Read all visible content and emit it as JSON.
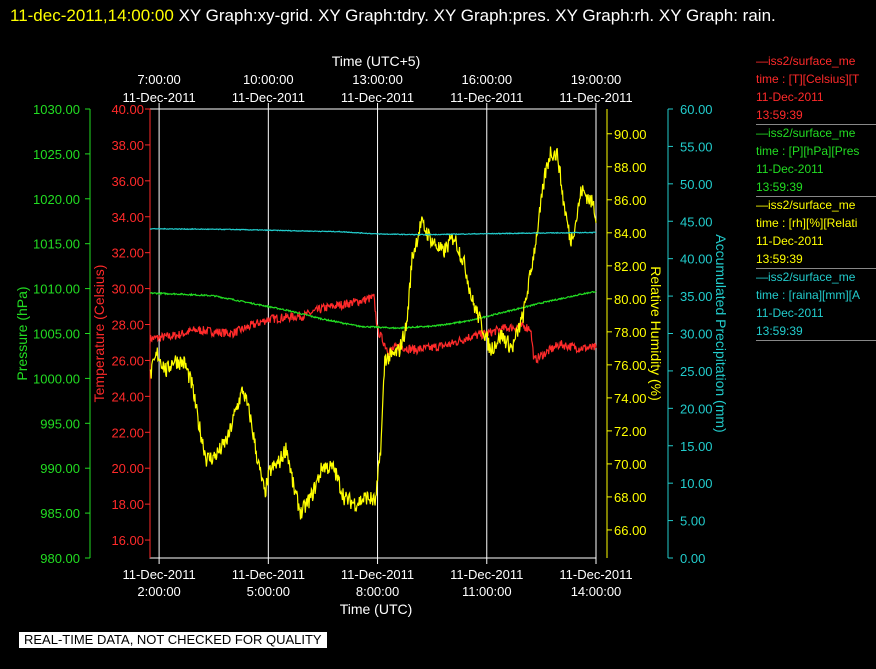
{
  "title": {
    "timestamp": "11-dec-2011,14:00:00",
    "rest": " XY Graph:xy-grid.  XY Graph:tdry.  XY Graph:pres.  XY Graph:rh.  XY Graph: rain."
  },
  "stamp": "REAL-TIME DATA, NOT CHECKED FOR QUALITY",
  "legend": [
    {
      "name": "—iss2/surface_me",
      "units": "time : [T][Celsius][T",
      "date": "11-Dec-2011",
      "time": "13:59:39",
      "color": "#ff2a2a"
    },
    {
      "name": "—iss2/surface_me",
      "units": "time : [P][hPa][Pres",
      "date": "11-Dec-2011",
      "time": "13:59:39",
      "color": "#22dd22"
    },
    {
      "name": "—iss2/surface_me",
      "units": "time : [rh][%][Relati",
      "date": "11-Dec-2011",
      "time": "13:59:39",
      "color": "#ffff00"
    },
    {
      "name": "—iss2/surface_me",
      "units": "time : [raina][mm][A",
      "date": "11-Dec-2011",
      "time": "13:59:39",
      "color": "#22cccc"
    }
  ],
  "chart_data": {
    "type": "line",
    "xlabel": "Time (UTC)",
    "x2label": "Time (UTC+5)",
    "xlim": [
      1.75,
      14.0
    ],
    "xticks": [
      {
        "t": 2,
        "date": "11-Dec-2011",
        "time": "2:00:00"
      },
      {
        "t": 5,
        "date": "11-Dec-2011",
        "time": "5:00:00"
      },
      {
        "t": 8,
        "date": "11-Dec-2011",
        "time": "8:00:00"
      },
      {
        "t": 11,
        "date": "11-Dec-2011",
        "time": "11:00:00"
      },
      {
        "t": 14,
        "date": "11-Dec-2011",
        "time": "14:00:00"
      }
    ],
    "x2ticks": [
      {
        "t": 2,
        "time": "7:00:00",
        "date": "11-Dec-2011"
      },
      {
        "t": 5,
        "time": "10:00:00",
        "date": "11-Dec-2011"
      },
      {
        "t": 8,
        "time": "13:00:00",
        "date": "11-Dec-2011"
      },
      {
        "t": 11,
        "time": "16:00:00",
        "date": "11-Dec-2011"
      },
      {
        "t": 14,
        "time": "19:00:00",
        "date": "11-Dec-2011"
      }
    ],
    "grid": true,
    "axes": {
      "pressure": {
        "label": "Pressure (hPa)",
        "ylim": [
          980,
          1030
        ],
        "ticks": [
          "980.00",
          "985.00",
          "990.00",
          "995.00",
          "1000.00",
          "1005.00",
          "1010.00",
          "1015.00",
          "1020.00",
          "1025.00",
          "1030.00"
        ],
        "color": "#22dd22",
        "side": "left"
      },
      "temperature": {
        "label": "Temperature (Celsius)",
        "ylim": [
          15,
          40
        ],
        "ticks": [
          "16.00",
          "18.00",
          "20.00",
          "22.00",
          "24.00",
          "26.00",
          "28.00",
          "30.00",
          "32.00",
          "34.00",
          "36.00",
          "38.00",
          "40.00"
        ],
        "color": "#ff2a2a",
        "side": "left"
      },
      "rh": {
        "label": "Relative Humidity (%)",
        "ylim": [
          64.3,
          91.5
        ],
        "ticks": [
          "66.00",
          "68.00",
          "70.00",
          "72.00",
          "74.00",
          "76.00",
          "78.00",
          "80.00",
          "82.00",
          "84.00",
          "86.00",
          "88.00",
          "90.00"
        ],
        "color": "#ffff00",
        "side": "right"
      },
      "rain": {
        "label": "Accumulated Precipitation (mm)",
        "ylim": [
          0,
          60
        ],
        "ticks": [
          "0.00",
          "5.00",
          "10.00",
          "15.00",
          "20.00",
          "25.00",
          "30.00",
          "35.00",
          "40.00",
          "45.00",
          "50.00",
          "55.00",
          "60.00"
        ],
        "color": "#22cccc",
        "side": "right"
      }
    },
    "series": [
      {
        "axis": "temperature",
        "color": "#ff2a2a",
        "noise": 0.25,
        "points": [
          [
            1.75,
            27.2
          ],
          [
            2.5,
            27.4
          ],
          [
            3,
            27.7
          ],
          [
            4,
            27.5
          ],
          [
            5,
            28.3
          ],
          [
            6,
            28.5
          ],
          [
            6.5,
            28.9
          ],
          [
            7.5,
            29.3
          ],
          [
            7.9,
            29.5
          ],
          [
            8.0,
            27.7
          ],
          [
            8.3,
            26.5
          ],
          [
            8.6,
            26.8
          ],
          [
            9,
            26.6
          ],
          [
            9.5,
            26.7
          ],
          [
            10,
            26.9
          ],
          [
            10.5,
            27.3
          ],
          [
            11,
            27.5
          ],
          [
            11.5,
            27.8
          ],
          [
            12,
            27.9
          ],
          [
            12.2,
            27.8
          ],
          [
            12.3,
            26.0
          ],
          [
            12.6,
            26.4
          ],
          [
            13,
            26.9
          ],
          [
            13.5,
            26.7
          ],
          [
            14,
            26.7
          ]
        ]
      },
      {
        "axis": "pressure",
        "color": "#22dd22",
        "noise": 0.08,
        "points": [
          [
            1.75,
            1009.5
          ],
          [
            2.5,
            1009.4
          ],
          [
            3.5,
            1009.2
          ],
          [
            4.5,
            1008.4
          ],
          [
            5.5,
            1007.6
          ],
          [
            6.5,
            1006.6
          ],
          [
            7.5,
            1005.8
          ],
          [
            8.5,
            1005.6
          ],
          [
            9.5,
            1005.8
          ],
          [
            10.5,
            1006.4
          ],
          [
            11.5,
            1007.4
          ],
          [
            12.5,
            1008.4
          ],
          [
            13.5,
            1009.3
          ],
          [
            14,
            1009.7
          ]
        ]
      },
      {
        "axis": "rh",
        "color": "#ffff00",
        "noise": 0.5,
        "points": [
          [
            1.75,
            75.3
          ],
          [
            1.95,
            76.7
          ],
          [
            2.2,
            75.6
          ],
          [
            2.4,
            76.3
          ],
          [
            2.7,
            76.1
          ],
          [
            2.9,
            74.8
          ],
          [
            3.1,
            72.3
          ],
          [
            3.3,
            70.3
          ],
          [
            3.5,
            70.4
          ],
          [
            3.7,
            70.9
          ],
          [
            3.9,
            71.6
          ],
          [
            4.1,
            73.2
          ],
          [
            4.3,
            74.5
          ],
          [
            4.5,
            72.9
          ],
          [
            4.7,
            70.3
          ],
          [
            4.9,
            68.2
          ],
          [
            5.05,
            69.6
          ],
          [
            5.3,
            70.1
          ],
          [
            5.5,
            71.0
          ],
          [
            5.7,
            68.5
          ],
          [
            5.9,
            67.0
          ],
          [
            6.2,
            68.1
          ],
          [
            6.5,
            69.9
          ],
          [
            6.8,
            69.7
          ],
          [
            7.1,
            67.9
          ],
          [
            7.4,
            67.6
          ],
          [
            7.7,
            68.0
          ],
          [
            7.95,
            67.7
          ],
          [
            8.1,
            71.4
          ],
          [
            8.2,
            76.4
          ],
          [
            8.4,
            76.5
          ],
          [
            8.6,
            76.9
          ],
          [
            8.8,
            78.4
          ],
          [
            8.95,
            82.5
          ],
          [
            9.2,
            84.6
          ],
          [
            9.5,
            83.5
          ],
          [
            9.8,
            82.8
          ],
          [
            10.1,
            83.8
          ],
          [
            10.4,
            82.0
          ],
          [
            10.6,
            79.9
          ],
          [
            10.9,
            78.2
          ],
          [
            11.1,
            76.9
          ],
          [
            11.4,
            77.8
          ],
          [
            11.7,
            77.0
          ],
          [
            12.0,
            79.0
          ],
          [
            12.2,
            81.5
          ],
          [
            12.4,
            84.3
          ],
          [
            12.6,
            87.5
          ],
          [
            12.75,
            88.9
          ],
          [
            12.95,
            88.7
          ],
          [
            13.1,
            86.0
          ],
          [
            13.3,
            83.5
          ],
          [
            13.45,
            84.7
          ],
          [
            13.6,
            86.6
          ],
          [
            13.8,
            86.1
          ],
          [
            13.95,
            85.6
          ],
          [
            14.0,
            84.6
          ]
        ]
      },
      {
        "axis": "rain",
        "color": "#22cccc",
        "noise": 0.05,
        "points": [
          [
            1.75,
            44.0
          ],
          [
            4,
            43.9
          ],
          [
            7,
            43.6
          ],
          [
            8,
            43.3
          ],
          [
            9.2,
            43.2
          ],
          [
            10.5,
            43.3
          ],
          [
            12,
            43.4
          ],
          [
            14,
            43.5
          ]
        ]
      }
    ]
  }
}
